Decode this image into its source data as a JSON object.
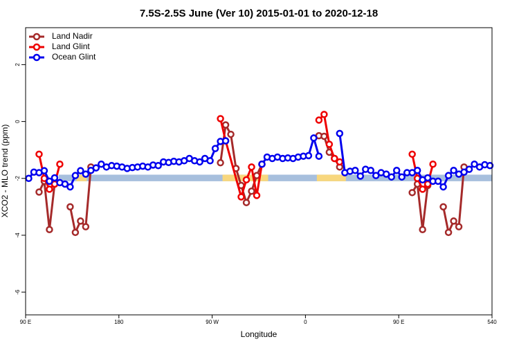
{
  "chart_data": {
    "type": "line",
    "title": "7.5S-2.5S June (Ver 10)   2015-01-01 to 2020-12-18",
    "xlabel": "Longitude",
    "ylabel": "XCO2 - MLO trend (ppm)",
    "xlim": [
      90,
      540
    ],
    "ylim": [
      -6.8,
      3.3
    ],
    "xticks": [
      {
        "value": 90,
        "label": "90 E"
      },
      180,
      {
        "value": 270,
        "label": "90 W"
      },
      {
        "value": 360,
        "label": "0"
      },
      {
        "value": 450,
        "label": "90 E"
      },
      540
    ],
    "yticks": [
      -6,
      -4,
      -2,
      0,
      2
    ],
    "legend": "top-left",
    "bands": [
      {
        "xlim": [
          122,
          540
        ],
        "ylim": [
          -2.1,
          -1.87
        ],
        "color": "#a7bfdd"
      },
      {
        "xlim": [
          139,
          149
        ],
        "ylim": [
          -2.1,
          -1.87
        ],
        "color": "#f8d77e"
      },
      {
        "xlim": [
          280,
          324
        ],
        "ylim": [
          -2.1,
          -1.87
        ],
        "color": "#f8d77e"
      },
      {
        "xlim": [
          371,
          399
        ],
        "ylim": [
          -2.1,
          -1.87
        ],
        "color": "#f8d77e"
      }
    ],
    "series": [
      {
        "name": "Land Nadir",
        "color": "#a52a2a",
        "x": [
          103,
          108,
          113,
          118,
          123,
          133,
          138,
          143,
          148,
          153,
          158,
          278,
          283,
          288,
          293,
          298,
          303,
          308,
          313,
          318,
          323,
          373,
          378,
          383,
          388,
          393,
          398,
          463,
          468,
          473,
          478,
          483,
          493,
          498,
          503,
          508,
          513
        ],
        "values": [
          -2.48,
          -2.1,
          -3.8,
          -2.2,
          null,
          -3.0,
          -3.9,
          -3.5,
          -3.7,
          -1.6,
          null,
          -1.45,
          -0.12,
          -0.45,
          -1.65,
          -2.25,
          -2.85,
          -2.45,
          -1.9,
          -1.5,
          null,
          -0.5,
          -0.52,
          -1.08,
          -1.3,
          -1.6,
          null,
          -2.5,
          -2.2,
          -3.8,
          -2.25,
          null,
          -3.0,
          -3.9,
          -3.5,
          -3.7,
          -1.6
        ]
      },
      {
        "name": "Land Glint",
        "color": "#ee0000",
        "x": [
          103,
          108,
          113,
          118,
          123,
          128,
          278,
          283,
          298,
          303,
          308,
          313,
          318,
          323,
          373,
          378,
          383,
          388,
          393,
          398,
          463,
          468,
          473,
          478,
          483
        ],
        "values": [
          -1.15,
          -2.0,
          -2.38,
          -2.2,
          -1.5,
          null,
          0.1,
          -0.68,
          -2.65,
          -2.05,
          -1.6,
          -2.6,
          -1.5,
          null,
          0.05,
          0.25,
          -0.8,
          -1.3,
          -1.42,
          null,
          -1.15,
          -2.0,
          -2.38,
          -2.2,
          -1.5
        ]
      },
      {
        "name": "Ocean Glint",
        "color": "#0000ee",
        "x": [
          93,
          98,
          103,
          108,
          113,
          118,
          123,
          128,
          133,
          138,
          143,
          148,
          153,
          158,
          163,
          168,
          173,
          178,
          183,
          188,
          193,
          198,
          203,
          208,
          213,
          218,
          223,
          228,
          233,
          238,
          243,
          248,
          253,
          258,
          263,
          268,
          273,
          278,
          283,
          288,
          318,
          323,
          328,
          333,
          338,
          343,
          348,
          353,
          358,
          363,
          368,
          373,
          378,
          393,
          398,
          403,
          408,
          413,
          418,
          423,
          428,
          433,
          438,
          443,
          448,
          453,
          458,
          463,
          468,
          473,
          478,
          483,
          488,
          493,
          498,
          503,
          508,
          513,
          518,
          523,
          528,
          533,
          538
        ],
        "values": [
          -2.0,
          -1.78,
          -1.8,
          -1.73,
          -2.1,
          -1.98,
          -2.15,
          -2.2,
          -2.3,
          -1.9,
          -1.73,
          -1.85,
          -1.72,
          -1.63,
          -1.5,
          -1.6,
          -1.55,
          -1.57,
          -1.6,
          -1.65,
          -1.62,
          -1.6,
          -1.57,
          -1.6,
          -1.53,
          -1.55,
          -1.42,
          -1.44,
          -1.4,
          -1.42,
          -1.38,
          -1.3,
          -1.38,
          -1.42,
          -1.3,
          -1.38,
          -0.95,
          -0.7,
          -0.68,
          null,
          -1.5,
          -1.25,
          -1.3,
          -1.25,
          -1.3,
          -1.28,
          -1.3,
          -1.25,
          -1.22,
          -1.2,
          -0.58,
          -1.22,
          null,
          -0.42,
          -1.8,
          -1.75,
          -1.72,
          -1.92,
          -1.68,
          -1.72,
          -1.9,
          -1.8,
          -1.85,
          -1.95,
          -1.72,
          -1.95,
          -1.8,
          -1.8,
          -1.72,
          -2.05,
          -1.98,
          -2.1,
          -2.1,
          -2.3,
          -1.9,
          -1.72,
          -1.85,
          -1.78,
          -1.68,
          -1.5,
          -1.6,
          -1.52,
          -1.55
        ]
      }
    ]
  }
}
